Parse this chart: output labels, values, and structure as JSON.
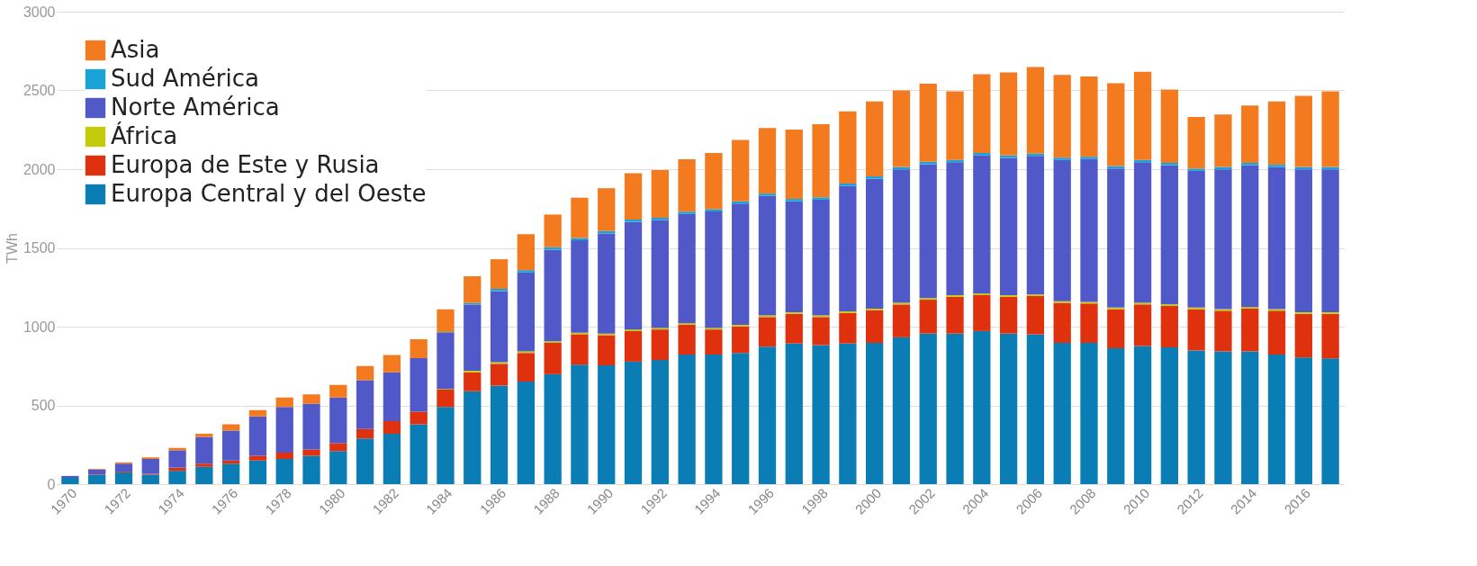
{
  "chart_data": {
    "type": "bar",
    "stacked": true,
    "ylabel": "TWh",
    "ylim": [
      0,
      3000
    ],
    "yticks": [
      0,
      500,
      1000,
      1500,
      2000,
      2500,
      3000
    ],
    "grid": "y",
    "legend": "top left",
    "categories": [
      "1970",
      null,
      "1972",
      null,
      "1974",
      null,
      "1976",
      null,
      "1978",
      null,
      "1980",
      null,
      "1982",
      null,
      "1984",
      null,
      "1986",
      null,
      "1988",
      null,
      "1990",
      null,
      "1992",
      null,
      "1994",
      null,
      "1996",
      null,
      "1998",
      null,
      "2000",
      null,
      "2002",
      null,
      "2004",
      null,
      "2006",
      null,
      "2008",
      null,
      "2010",
      null,
      "2012",
      null,
      "2014",
      null,
      "2016",
      null
    ],
    "series": [
      {
        "name": "Europa Central y del Oeste",
        "color": "#0a7db5",
        "values": [
          40,
          60,
          75,
          60,
          85,
          110,
          130,
          150,
          160,
          180,
          210,
          290,
          320,
          380,
          490,
          590,
          625,
          651,
          698,
          758,
          754,
          778,
          788,
          823,
          823,
          833,
          873,
          893,
          883,
          893,
          897,
          932,
          956,
          956,
          972,
          956,
          952,
          897,
          897,
          863,
          877,
          869,
          849,
          843,
          843,
          823,
          804,
          798
        ]
      },
      {
        "name": "Europa de Este y Rusia",
        "color": "#e0310f",
        "values": [
          null,
          3,
          5,
          5,
          20,
          20,
          20,
          30,
          40,
          40,
          50,
          60,
          80,
          80,
          110,
          120,
          139,
          182,
          199,
          194,
          192,
          194,
          194,
          189,
          159,
          169,
          188,
          188,
          178,
          194,
          208,
          209,
          215,
          234,
          228,
          234,
          242,
          254,
          250,
          248,
          264,
          262,
          262,
          258,
          272,
          278,
          277,
          283
        ]
      },
      {
        "name": "África",
        "color": "#c4cc0a",
        "values": [
          0,
          0,
          0,
          0,
          0,
          0,
          0,
          0,
          0,
          0,
          0,
          0,
          0,
          0,
          5,
          10,
          10,
          10,
          10,
          10,
          10,
          10,
          10,
          10,
          10,
          10,
          10,
          10,
          10,
          10,
          10,
          10,
          10,
          10,
          10,
          10,
          10,
          10,
          10,
          10,
          10,
          10,
          10,
          10,
          10,
          10,
          10,
          10
        ]
      },
      {
        "name": "Norte América",
        "color": "#5159c9",
        "values": [
          12,
          30,
          50,
          95,
          110,
          170,
          190,
          250,
          290,
          290,
          290,
          310,
          310,
          340,
          355,
          420,
          451,
          501,
          582,
          586,
          636,
          683,
          685,
          693,
          739,
          769,
          759,
          705,
          735,
          797,
          824,
          848,
          851,
          844,
          878,
          872,
          880,
          897,
          907,
          884,
          893,
          884,
          868,
          888,
          900,
          902,
          908,
          908
        ]
      },
      {
        "name": " Sud América",
        "color": "#1aa3d9",
        "values": [
          0,
          0,
          0,
          0,
          0,
          0,
          0,
          0,
          0,
          0,
          0,
          0,
          0,
          0,
          5,
          10,
          15,
          15,
          15,
          15,
          15,
          15,
          15,
          15,
          15,
          15,
          15,
          15,
          15,
          15,
          15,
          15,
          15,
          15,
          15,
          15,
          15,
          15,
          15,
          15,
          15,
          15,
          15,
          15,
          15,
          15,
          15,
          15
        ]
      },
      {
        "name": "Asia",
        "color": "#f47a1f",
        "values": [
          null,
          4,
          8,
          10,
          15,
          20,
          40,
          40,
          60,
          60,
          80,
          90,
          110,
          120,
          145,
          170,
          188,
          228,
          208,
          256,
          272,
          294,
          302,
          333,
          357,
          390,
          417,
          441,
          465,
          458,
          476,
          486,
          496,
          435,
          500,
          528,
          550,
          526,
          510,
          526,
          560,
          466,
          327,
          333,
          365,
          402,
          452,
          480
        ]
      }
    ]
  }
}
